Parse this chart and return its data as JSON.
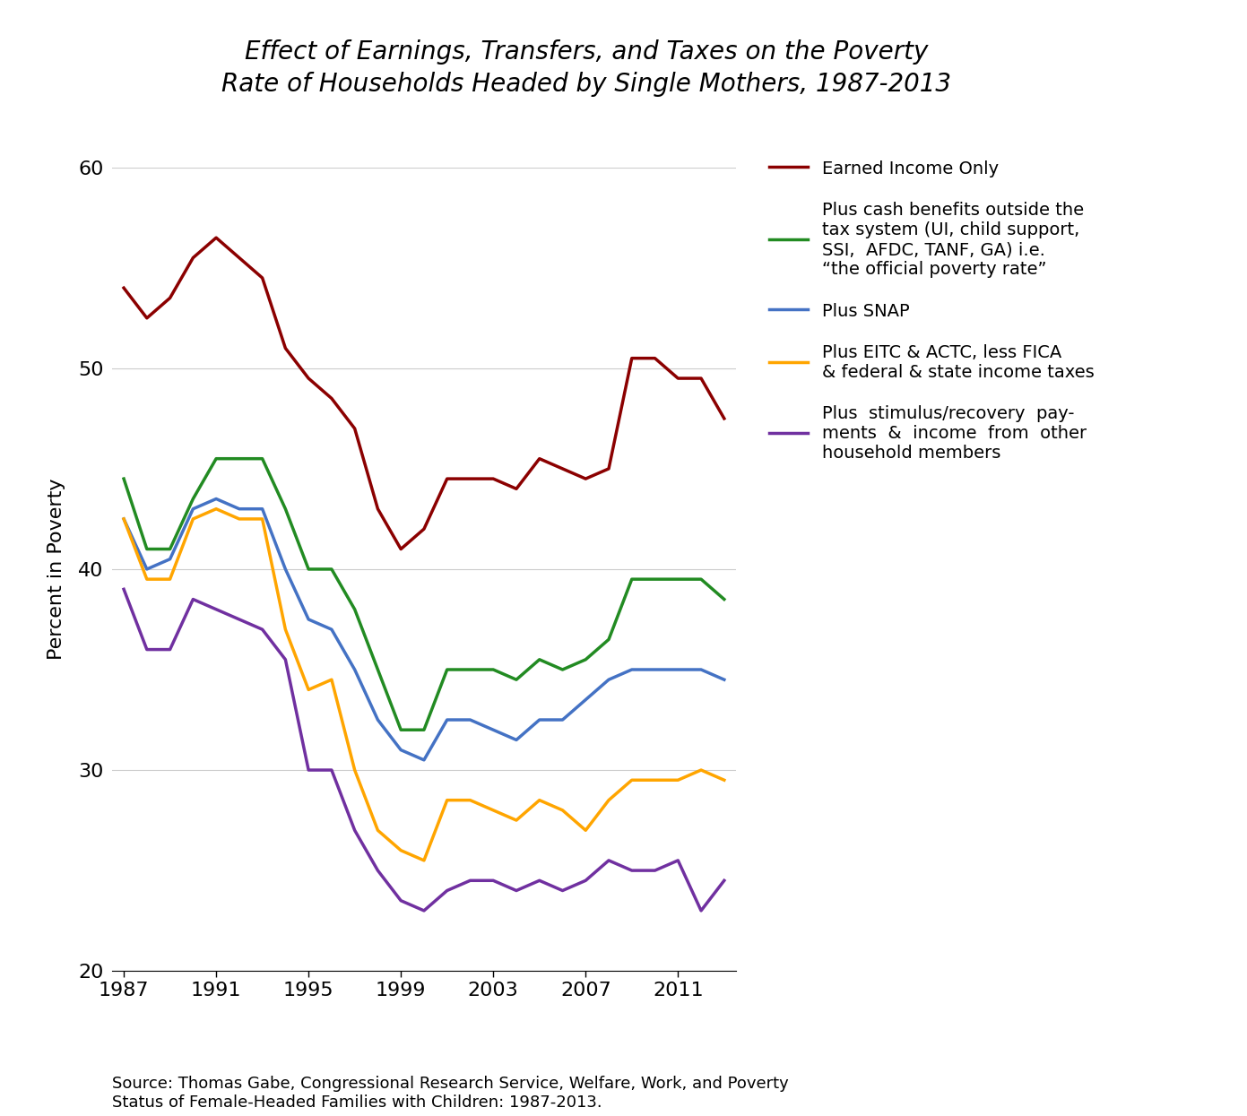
{
  "title": "Effect of Earnings, Transfers, and Taxes on the Poverty\nRate of Households Headed by Single Mothers, 1987-2013",
  "ylabel": "Percent in Poverty",
  "source": "Source: Thomas Gabe, Congressional Research Service, Welfare, Work, and Poverty\nStatus of Female-Headed Families with Children: 1987-2013.",
  "years": [
    1987,
    1988,
    1989,
    1990,
    1991,
    1992,
    1993,
    1994,
    1995,
    1996,
    1997,
    1998,
    1999,
    2000,
    2001,
    2002,
    2003,
    2004,
    2005,
    2006,
    2007,
    2008,
    2009,
    2010,
    2011,
    2012,
    2013
  ],
  "series": [
    {
      "key": "earned_only",
      "label": "Earned Income Only",
      "color": "#8B0000",
      "data": [
        54.0,
        52.5,
        53.5,
        55.5,
        56.5,
        55.5,
        54.5,
        51.0,
        49.5,
        48.5,
        47.0,
        43.0,
        41.0,
        42.0,
        44.5,
        44.5,
        44.5,
        44.0,
        45.5,
        45.0,
        44.5,
        45.0,
        50.5,
        50.5,
        49.5,
        49.5,
        47.5
      ]
    },
    {
      "key": "plus_cash",
      "label": "Plus cash benefits outside the\ntax system (UI, child support,\nSSI,  AFDC, TANF, GA) i.e.\n“the official poverty rate”",
      "color": "#228B22",
      "data": [
        44.5,
        41.0,
        41.0,
        43.5,
        45.5,
        45.5,
        45.5,
        43.0,
        40.0,
        40.0,
        38.0,
        35.0,
        32.0,
        32.0,
        35.0,
        35.0,
        35.0,
        34.5,
        35.5,
        35.0,
        35.5,
        36.5,
        39.5,
        39.5,
        39.5,
        39.5,
        38.5
      ]
    },
    {
      "key": "plus_snap",
      "label": "Plus SNAP",
      "color": "#4472C4",
      "data": [
        42.5,
        40.0,
        40.5,
        43.0,
        43.5,
        43.0,
        43.0,
        40.0,
        37.5,
        37.0,
        35.0,
        32.5,
        31.0,
        30.5,
        32.5,
        32.5,
        32.0,
        31.5,
        32.5,
        32.5,
        33.5,
        34.5,
        35.0,
        35.0,
        35.0,
        35.0,
        34.5
      ]
    },
    {
      "key": "plus_eitc",
      "label": "Plus EITC & ACTC, less FICA\n& federal & state income taxes",
      "color": "#FFA500",
      "data": [
        42.5,
        39.5,
        39.5,
        42.5,
        43.0,
        42.5,
        42.5,
        37.0,
        34.0,
        34.5,
        30.0,
        27.0,
        26.0,
        25.5,
        28.5,
        28.5,
        28.0,
        27.5,
        28.5,
        28.0,
        27.0,
        28.5,
        29.5,
        29.5,
        29.5,
        30.0,
        29.5
      ]
    },
    {
      "key": "plus_stimulus",
      "label": "Plus  stimulus/recovery  pay-\nments  &  income  from  other\nhousehold members",
      "color": "#7030A0",
      "data": [
        39.0,
        36.0,
        36.0,
        38.5,
        38.0,
        37.5,
        37.0,
        35.5,
        30.0,
        30.0,
        27.0,
        25.0,
        23.5,
        23.0,
        24.0,
        24.5,
        24.5,
        24.0,
        24.5,
        24.0,
        24.5,
        25.5,
        25.0,
        25.0,
        25.5,
        23.0,
        24.5
      ]
    }
  ],
  "ylim": [
    20,
    60
  ],
  "yticks": [
    20,
    30,
    40,
    50,
    60
  ],
  "xticks": [
    1987,
    1991,
    1995,
    1999,
    2003,
    2007,
    2011
  ],
  "grid_color": "#CCCCCC",
  "title_fontsize": 20,
  "tick_fontsize": 16,
  "ylabel_fontsize": 16,
  "legend_fontsize": 14,
  "source_fontsize": 13,
  "linewidth": 2.5
}
